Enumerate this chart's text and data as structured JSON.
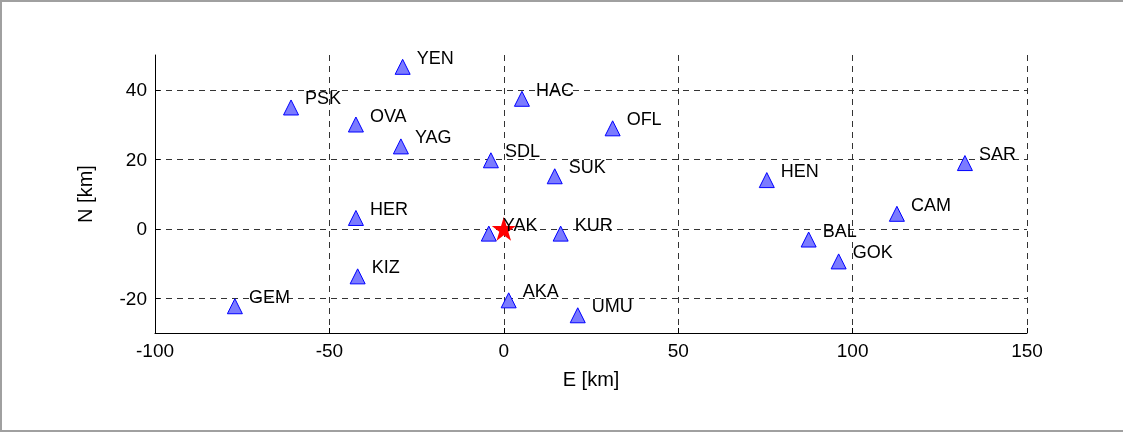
{
  "chart_data": {
    "type": "scatter",
    "xlabel": "E [km]",
    "ylabel": "N [km]",
    "xlim": [
      -100,
      150
    ],
    "xticks": [
      -100,
      -50,
      0,
      50,
      100,
      150
    ],
    "ylim": [
      -30,
      50
    ],
    "yticks": [
      -20,
      0,
      20,
      40
    ],
    "grid": true,
    "series": [
      {
        "color": "#7b7bff",
        "marker": "triangle",
        "x": [
          -29,
          -61,
          -42.4,
          -29.5,
          5.2,
          31.2,
          -3.7,
          14.6,
          75.4,
          132.2,
          112.7,
          -42.4,
          -4.3,
          16.3,
          87.4,
          96,
          -41.9,
          -77.1,
          1.4,
          21.2
        ],
        "values": [
          46.6,
          34.9,
          30,
          23.7,
          37.4,
          28.9,
          19.7,
          15.1,
          14,
          18.9,
          4.3,
          3.1,
          -1.4,
          -1.4,
          -3.1,
          -9.4,
          -13.7,
          -22.3,
          -20.6,
          -24.9
        ]
      },
      {
        "color": "#ff0000",
        "marker": "star",
        "x": [
          0
        ],
        "values": [
          0
        ]
      }
    ],
    "annotations": [
      {
        "text": "YEN",
        "x": -29,
        "y": 46.6
      },
      {
        "text": "PSK",
        "x": -61,
        "y": 34.9
      },
      {
        "text": "OVA",
        "x": -42.4,
        "y": 30
      },
      {
        "text": "YAG",
        "x": -29.5,
        "y": 23.7
      },
      {
        "text": "HAC",
        "x": 5.2,
        "y": 37.4
      },
      {
        "text": "OFL",
        "x": 31.2,
        "y": 28.9
      },
      {
        "text": "SDL",
        "x": -3.7,
        "y": 19.7
      },
      {
        "text": "SUK",
        "x": 14.6,
        "y": 15.1
      },
      {
        "text": "HEN",
        "x": 75.4,
        "y": 14
      },
      {
        "text": "SAR",
        "x": 132.2,
        "y": 18.9
      },
      {
        "text": "CAM",
        "x": 112.7,
        "y": 4.3
      },
      {
        "text": "HER",
        "x": -42.4,
        "y": 3.1
      },
      {
        "text": "YAK",
        "x": -4.3,
        "y": -1.4
      },
      {
        "text": "KUR",
        "x": 16.3,
        "y": -1.4
      },
      {
        "text": "BAL",
        "x": 87.4,
        "y": -3.1
      },
      {
        "text": "GOK",
        "x": 96,
        "y": -9.4
      },
      {
        "text": "KIZ",
        "x": -41.9,
        "y": -13.7
      },
      {
        "text": "GEM",
        "x": -77.1,
        "y": -22.3
      },
      {
        "text": "AKA",
        "x": 1.4,
        "y": -20.6
      },
      {
        "text": "UMU",
        "x": 21.2,
        "y": -24.9
      }
    ]
  }
}
